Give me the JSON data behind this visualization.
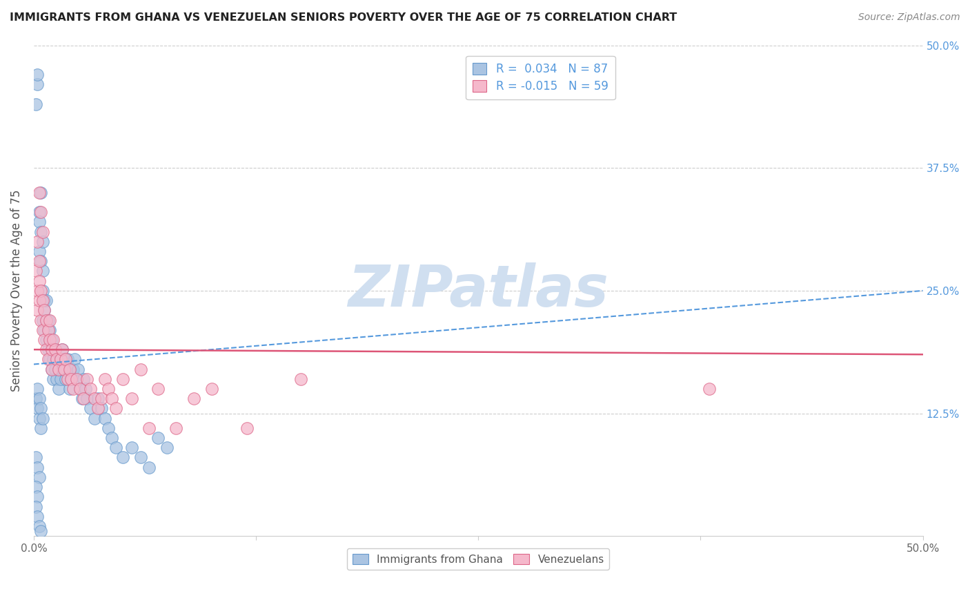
{
  "title": "IMMIGRANTS FROM GHANA VS VENEZUELAN SENIORS POVERTY OVER THE AGE OF 75 CORRELATION CHART",
  "source": "Source: ZipAtlas.com",
  "ylabel": "Seniors Poverty Over the Age of 75",
  "xlim": [
    0,
    0.5
  ],
  "ylim": [
    0,
    0.5
  ],
  "xtick_values": [
    0.0,
    0.125,
    0.25,
    0.375,
    0.5
  ],
  "xtick_labels": [
    "0.0%",
    "",
    "",
    "",
    "50.0%"
  ],
  "ytick_values_right": [
    0.125,
    0.25,
    0.375,
    0.5
  ],
  "ytick_labels_right": [
    "12.5%",
    "25.0%",
    "37.5%",
    "50.0%"
  ],
  "ghana_R": 0.034,
  "ghana_N": 87,
  "venezuela_R": -0.015,
  "venezuela_N": 59,
  "ghana_color": "#aac4e2",
  "venezuela_color": "#f5b8cb",
  "ghana_edge_color": "#6699cc",
  "venezuela_edge_color": "#dd6688",
  "ghana_line_color": "#5599dd",
  "venezuela_line_color": "#dd5577",
  "watermark": "ZIPatlas",
  "watermark_color": "#d0dff0",
  "ghana_line_y0": 0.175,
  "ghana_line_y1": 0.25,
  "venezuela_line_y0": 0.19,
  "venezuela_line_y1": 0.185,
  "ghana_scatter_x": [
    0.001,
    0.002,
    0.002,
    0.003,
    0.003,
    0.003,
    0.004,
    0.004,
    0.004,
    0.005,
    0.005,
    0.005,
    0.005,
    0.006,
    0.006,
    0.006,
    0.007,
    0.007,
    0.007,
    0.008,
    0.008,
    0.008,
    0.009,
    0.009,
    0.009,
    0.01,
    0.01,
    0.01,
    0.011,
    0.011,
    0.012,
    0.012,
    0.013,
    0.013,
    0.014,
    0.014,
    0.015,
    0.015,
    0.016,
    0.016,
    0.017,
    0.018,
    0.018,
    0.019,
    0.02,
    0.02,
    0.021,
    0.022,
    0.023,
    0.024,
    0.025,
    0.026,
    0.027,
    0.028,
    0.029,
    0.03,
    0.032,
    0.034,
    0.036,
    0.038,
    0.04,
    0.042,
    0.044,
    0.046,
    0.05,
    0.055,
    0.06,
    0.065,
    0.07,
    0.075,
    0.001,
    0.002,
    0.003,
    0.004,
    0.002,
    0.003,
    0.004,
    0.005,
    0.001,
    0.002,
    0.003,
    0.001,
    0.002,
    0.001,
    0.002,
    0.003,
    0.004
  ],
  "ghana_scatter_y": [
    0.44,
    0.46,
    0.47,
    0.33,
    0.29,
    0.32,
    0.35,
    0.31,
    0.28,
    0.3,
    0.27,
    0.25,
    0.22,
    0.24,
    0.21,
    0.23,
    0.22,
    0.2,
    0.24,
    0.21,
    0.19,
    0.22,
    0.2,
    0.18,
    0.21,
    0.19,
    0.17,
    0.2,
    0.18,
    0.16,
    0.19,
    0.17,
    0.18,
    0.16,
    0.17,
    0.15,
    0.18,
    0.16,
    0.19,
    0.17,
    0.18,
    0.17,
    0.16,
    0.18,
    0.17,
    0.15,
    0.16,
    0.17,
    0.18,
    0.16,
    0.17,
    0.15,
    0.14,
    0.16,
    0.15,
    0.14,
    0.13,
    0.12,
    0.14,
    0.13,
    0.12,
    0.11,
    0.1,
    0.09,
    0.08,
    0.09,
    0.08,
    0.07,
    0.1,
    0.09,
    0.14,
    0.13,
    0.12,
    0.11,
    0.15,
    0.14,
    0.13,
    0.12,
    0.08,
    0.07,
    0.06,
    0.05,
    0.04,
    0.03,
    0.02,
    0.01,
    0.005
  ],
  "venezuela_scatter_x": [
    0.001,
    0.002,
    0.002,
    0.003,
    0.003,
    0.004,
    0.004,
    0.005,
    0.005,
    0.006,
    0.006,
    0.007,
    0.007,
    0.008,
    0.008,
    0.009,
    0.009,
    0.01,
    0.01,
    0.011,
    0.012,
    0.013,
    0.014,
    0.015,
    0.016,
    0.017,
    0.018,
    0.019,
    0.02,
    0.021,
    0.022,
    0.024,
    0.026,
    0.028,
    0.03,
    0.032,
    0.034,
    0.036,
    0.038,
    0.04,
    0.042,
    0.044,
    0.046,
    0.05,
    0.055,
    0.06,
    0.065,
    0.07,
    0.08,
    0.09,
    0.1,
    0.12,
    0.15,
    0.002,
    0.003,
    0.003,
    0.004,
    0.005,
    0.38
  ],
  "venezuela_scatter_y": [
    0.27,
    0.25,
    0.23,
    0.26,
    0.24,
    0.25,
    0.22,
    0.24,
    0.21,
    0.23,
    0.2,
    0.22,
    0.19,
    0.21,
    0.18,
    0.22,
    0.2,
    0.19,
    0.17,
    0.2,
    0.19,
    0.18,
    0.17,
    0.18,
    0.19,
    0.17,
    0.18,
    0.16,
    0.17,
    0.16,
    0.15,
    0.16,
    0.15,
    0.14,
    0.16,
    0.15,
    0.14,
    0.13,
    0.14,
    0.16,
    0.15,
    0.14,
    0.13,
    0.16,
    0.14,
    0.17,
    0.11,
    0.15,
    0.11,
    0.14,
    0.15,
    0.11,
    0.16,
    0.3,
    0.35,
    0.28,
    0.33,
    0.31,
    0.15
  ]
}
